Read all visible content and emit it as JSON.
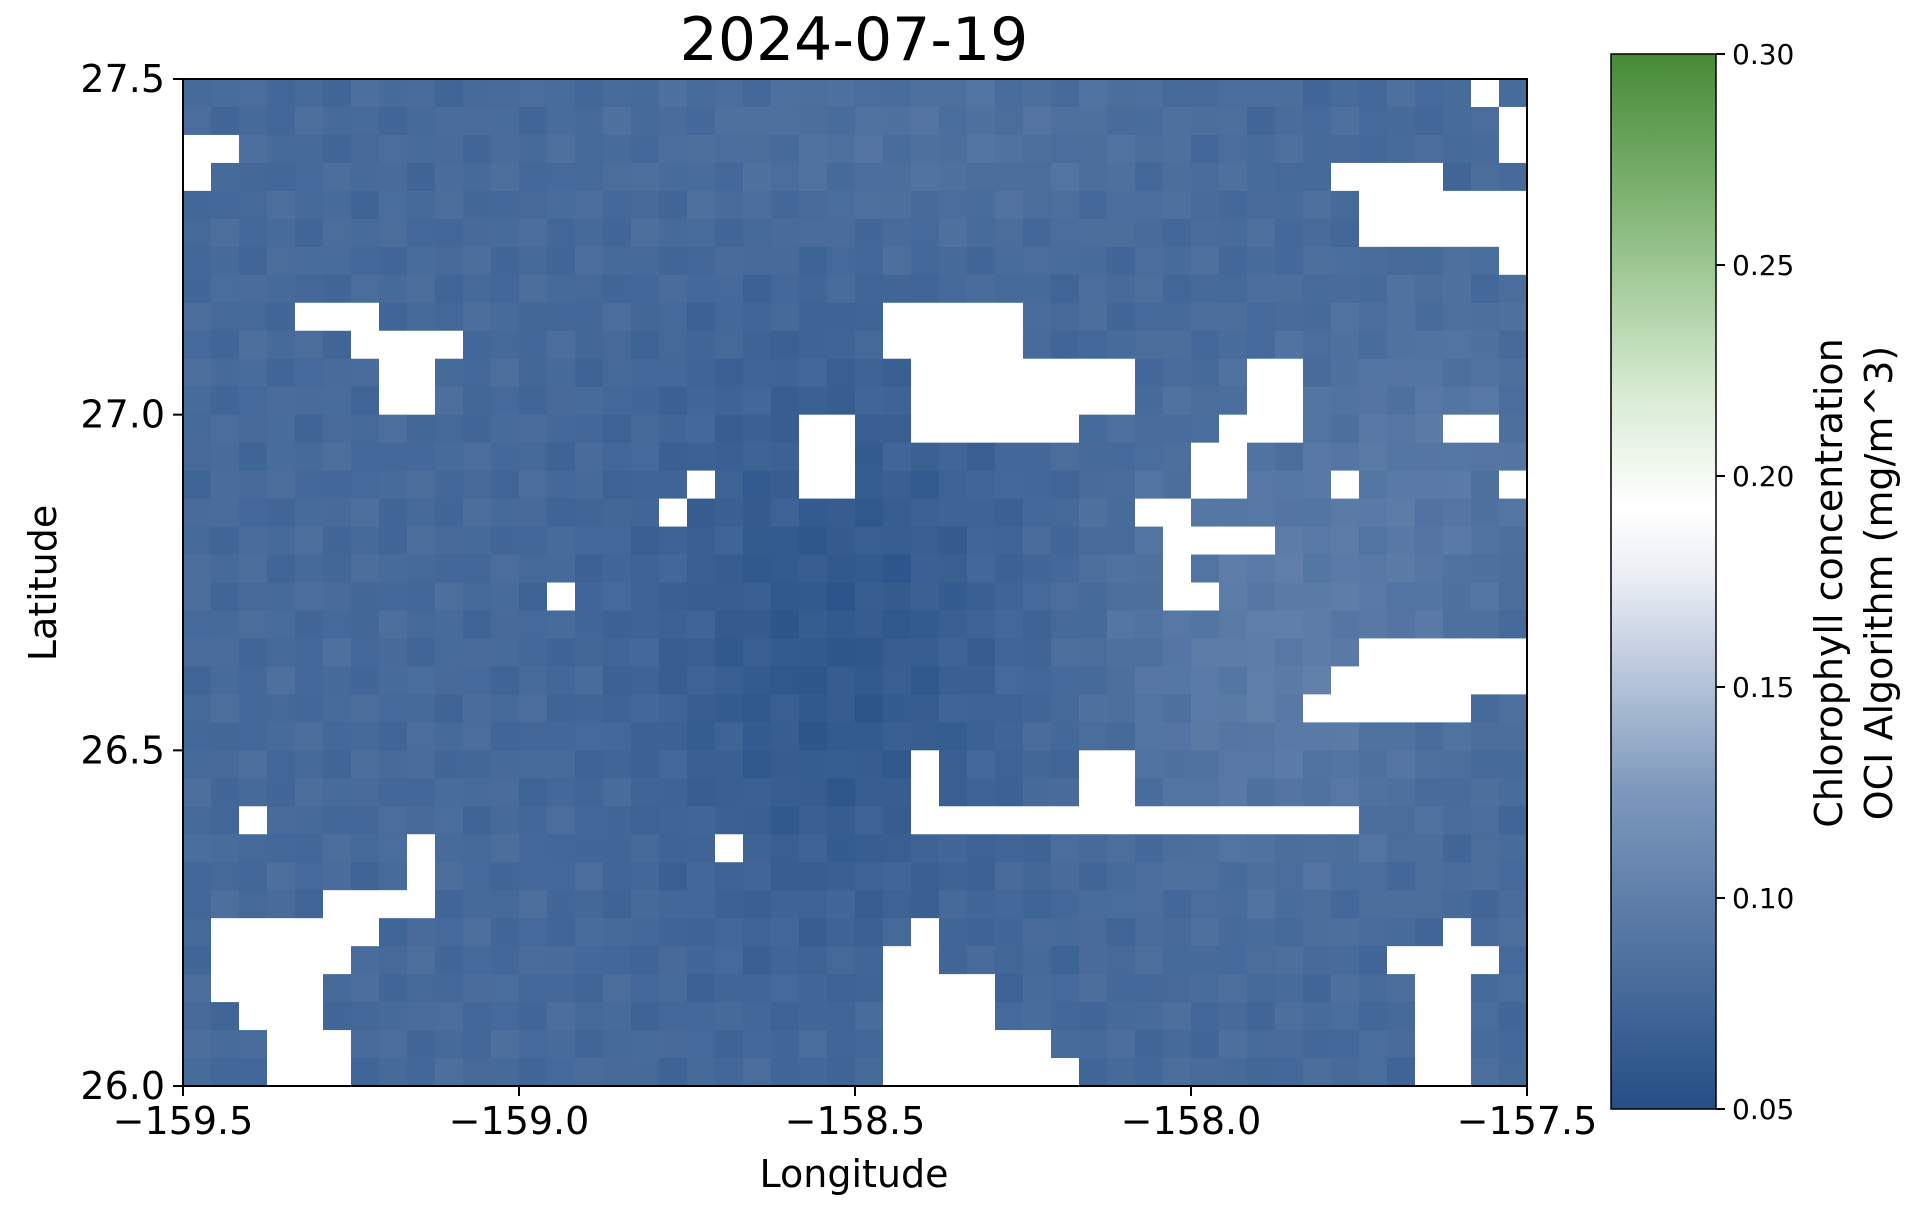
{
  "chart_data": {
    "type": "heatmap",
    "title": "2024-07-19",
    "xlabel": "Longitude",
    "ylabel": "Latitude",
    "xlim": [
      -159.5,
      -157.5
    ],
    "ylim": [
      26.0,
      27.5
    ],
    "xticks": [
      -159.5,
      -159.0,
      -158.5,
      -158.0,
      -157.5
    ],
    "xtick_labels": [
      "−159.5",
      "−159.0",
      "−158.5",
      "−158.0",
      "−157.5"
    ],
    "yticks": [
      26.0,
      26.5,
      27.0,
      27.5
    ],
    "ytick_labels": [
      "26.0",
      "26.5",
      "27.0",
      "27.5"
    ],
    "grid": false,
    "colorbar": {
      "label": [
        "Chlorophyll concentration",
        "OCI Algorithm (mg/m^3)"
      ],
      "vmin": 0.05,
      "vmax": 0.3,
      "ticks": [
        0.05,
        0.1,
        0.15,
        0.2,
        0.25,
        0.3
      ],
      "tick_labels": [
        "0.05",
        "0.10",
        "0.15",
        "0.20",
        "0.25",
        "0.30"
      ],
      "colormap": [
        {
          "v": 0.0,
          "color": "#264f86"
        },
        {
          "v": 0.3,
          "color": "#7c97bc"
        },
        {
          "v": 0.5,
          "color": "#e8ecf3"
        },
        {
          "v": 0.57,
          "color": "#ffffff"
        },
        {
          "v": 0.68,
          "color": "#d7ebd2"
        },
        {
          "v": 0.84,
          "color": "#89ba7d"
        },
        {
          "v": 1.0,
          "color": "#468a36"
        }
      ]
    },
    "grid_shape": {
      "rows": 36,
      "cols": 48
    },
    "lat_step": 0.041667,
    "lon_step": 0.041667,
    "value_range_observed": [
      0.05,
      0.11
    ],
    "missing_color": "#ffffff",
    "missing_regions_note": "white cells indicate no data"
  }
}
